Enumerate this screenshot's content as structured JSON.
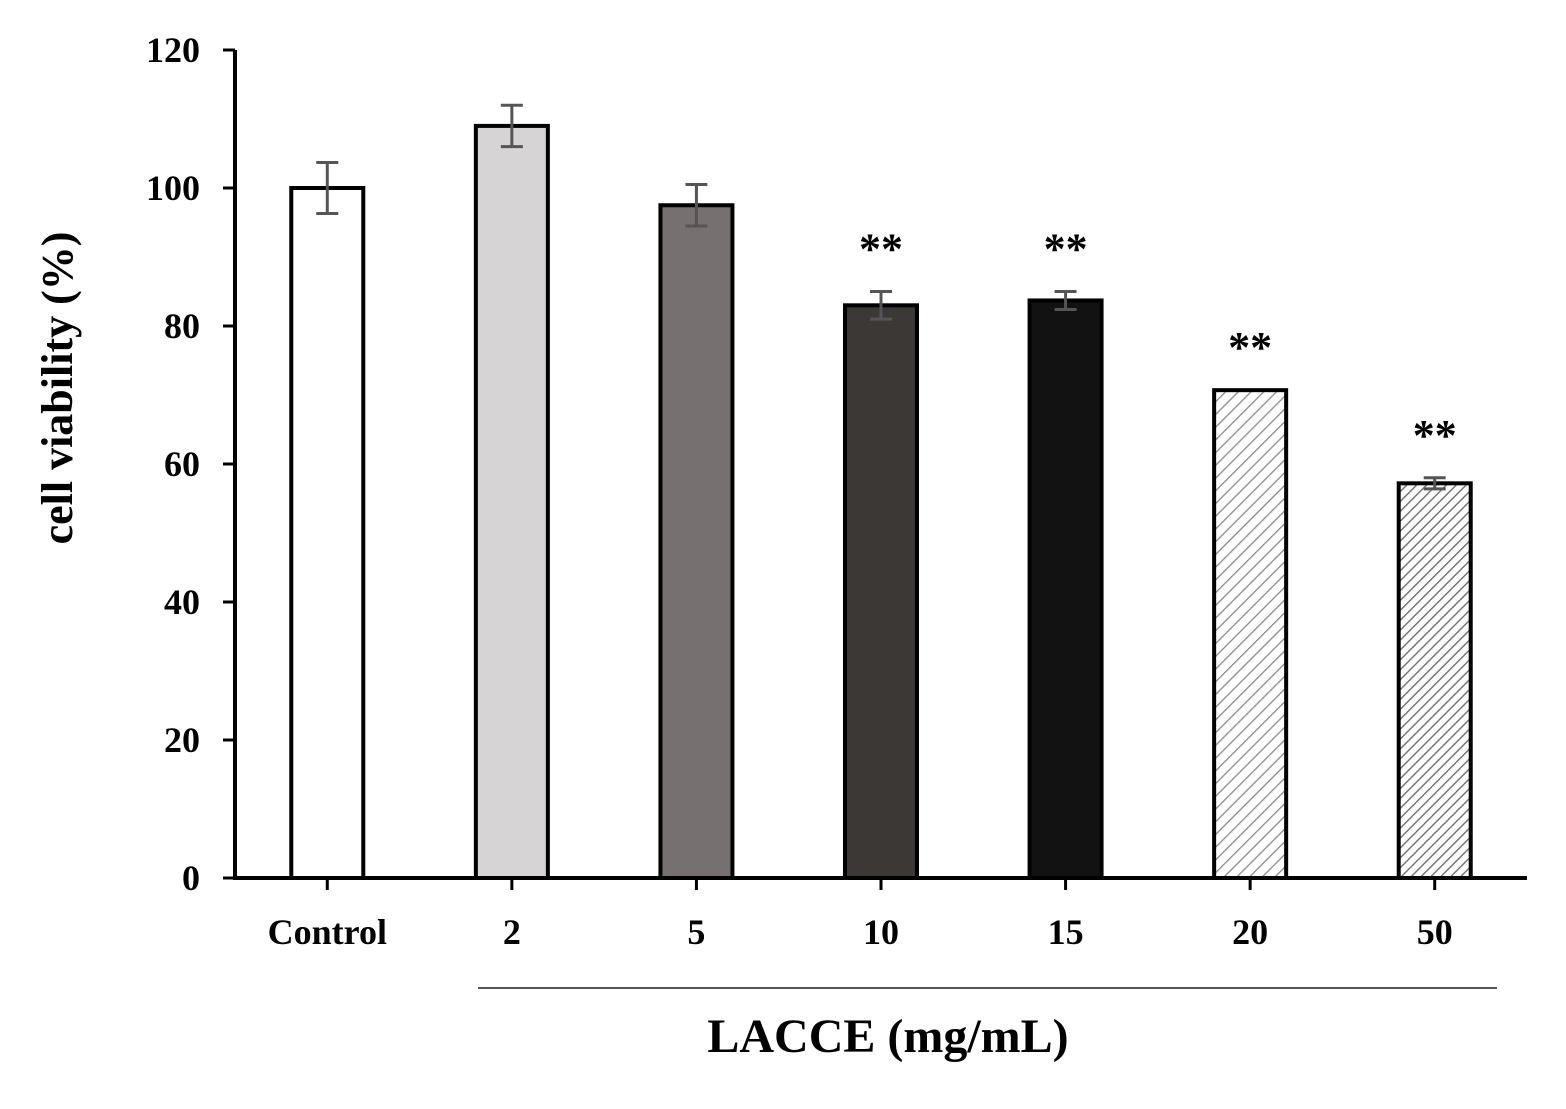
{
  "chart_data": {
    "type": "bar",
    "title": "",
    "xlabel": "LACCE (mg/mL)",
    "ylabel": "cell viability  (%)",
    "ylim": [
      0,
      120
    ],
    "yticks": [
      0,
      20,
      40,
      60,
      80,
      100,
      120
    ],
    "categories": [
      "Control",
      "2",
      "5",
      "10",
      "15",
      "20",
      "50"
    ],
    "values": [
      100,
      109,
      97.5,
      83,
      83.7,
      70.7,
      57.2
    ],
    "errors": [
      3.7,
      3,
      3,
      2,
      1.3,
      0,
      0.8
    ],
    "annotations": [
      "",
      "",
      "",
      "**",
      "**",
      "**",
      "**"
    ],
    "bar_colors": [
      "#ffffff",
      "#d6d4d5",
      "#767170",
      "#3c3836",
      "#121212",
      "hatch-light",
      "hatch-dense"
    ],
    "grid": false,
    "legend": "none"
  }
}
